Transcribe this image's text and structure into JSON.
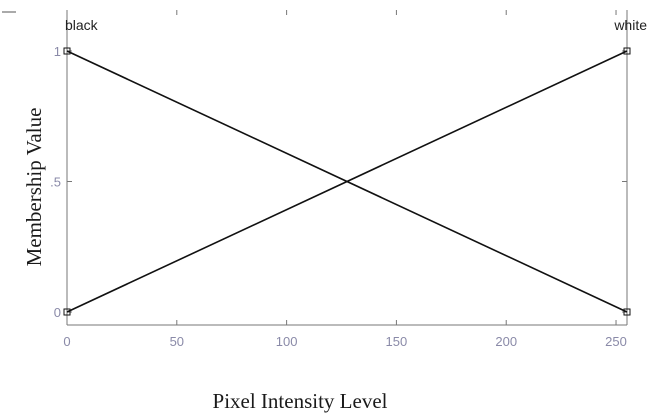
{
  "chart_data": {
    "type": "line",
    "xlabel": "Pixel Intensity Level",
    "ylabel": "Membership Value",
    "xlim": [
      0,
      255
    ],
    "ylim": [
      0,
      1
    ],
    "x_ticks": [
      0,
      50,
      100,
      150,
      200,
      250
    ],
    "y_ticks": [
      {
        "value": 0,
        "label": "0"
      },
      {
        "value": 0.5,
        "label": ".5"
      },
      {
        "value": 1,
        "label": "1"
      }
    ],
    "grid": false,
    "series": [
      {
        "name": "black",
        "x": [
          0,
          255
        ],
        "y": [
          1,
          0
        ]
      },
      {
        "name": "white",
        "x": [
          0,
          255
        ],
        "y": [
          0,
          1
        ]
      }
    ],
    "colors": {
      "line": "#111111",
      "axis": "#777777",
      "tick_label": "#8a8aa8"
    }
  }
}
